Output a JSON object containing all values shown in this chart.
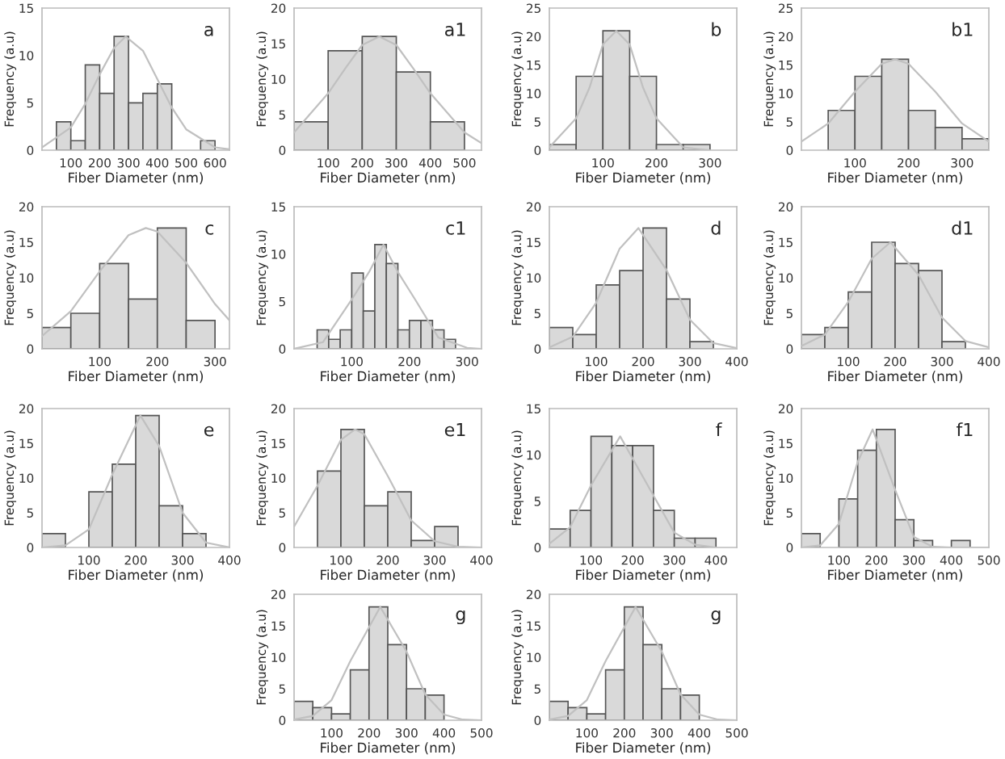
{
  "chart_data": [
    {
      "type": "histogram",
      "xlabel": "Fiber Diameter (nm)",
      "ylabel": "Frequency (a.u)",
      "annotations": [
        "a"
      ],
      "color": "#d9d9d9",
      "bins": [
        50,
        100,
        150,
        200,
        250,
        300,
        350,
        400,
        450,
        500,
        550,
        600
      ],
      "values": [
        3,
        1,
        9,
        6,
        12,
        5,
        6,
        7,
        0,
        0,
        1
      ],
      "xlim": [
        0,
        650
      ],
      "xticks": [
        100,
        200,
        300,
        400,
        500,
        600
      ],
      "ylim": [
        0,
        15
      ],
      "yticks": [
        0,
        5,
        10,
        15
      ],
      "grid": false,
      "series": [
        {
          "type": "line",
          "color": "#c0c0c0",
          "x": [
            0,
            100,
            150,
            200,
            250,
            290,
            350,
            400,
            450,
            500,
            600,
            650
          ],
          "values": [
            0.3,
            2.4,
            4.9,
            8,
            10.8,
            12,
            10.5,
            7.5,
            4.5,
            2.2,
            0.3,
            0.1
          ]
        }
      ]
    },
    {
      "type": "histogram",
      "xlabel": "Fiber Diameter (nm)",
      "ylabel": "Frequency (a.u)",
      "annotations": [
        "a1"
      ],
      "color": "#d9d9d9",
      "bins": [
        0,
        100,
        200,
        300,
        400,
        500
      ],
      "values": [
        4,
        14,
        16,
        11,
        4
      ],
      "xlim": [
        0,
        550
      ],
      "xticks": [
        100,
        200,
        300,
        400,
        500
      ],
      "ylim": [
        0,
        20
      ],
      "yticks": [
        0,
        5,
        10,
        15,
        20
      ],
      "grid": false,
      "series": [
        {
          "type": "line",
          "color": "#c0c0c0",
          "x": [
            0,
            100,
            150,
            200,
            250,
            300,
            350,
            400,
            500,
            550
          ],
          "values": [
            2.5,
            8,
            11.5,
            14.8,
            16,
            14.8,
            11.5,
            8,
            2.5,
            1
          ]
        }
      ]
    },
    {
      "type": "histogram",
      "xlabel": "Fiber Diameter (nm)",
      "ylabel": "Frequency (a.u)",
      "annotations": [
        "b"
      ],
      "color": "#d9d9d9",
      "bins": [
        0,
        50,
        100,
        150,
        200,
        250,
        300
      ],
      "values": [
        1,
        13,
        21,
        13,
        1,
        1
      ],
      "xlim": [
        0,
        350
      ],
      "xticks": [
        100,
        200,
        300
      ],
      "ylim": [
        0,
        25
      ],
      "yticks": [
        0,
        5,
        10,
        15,
        20,
        25
      ],
      "grid": false,
      "series": [
        {
          "type": "line",
          "color": "#c0c0c0",
          "x": [
            0,
            50,
            75,
            100,
            125,
            150,
            175,
            200,
            250,
            300
          ],
          "values": [
            0.5,
            5.6,
            11,
            18.6,
            21,
            18.6,
            11,
            5.6,
            0.5,
            0
          ]
        }
      ]
    },
    {
      "type": "histogram",
      "xlabel": "Fiber Diameter (nm)",
      "ylabel": "Frequency (a.u)",
      "annotations": [
        "b1"
      ],
      "color": "#d9d9d9",
      "bins": [
        50,
        100,
        150,
        200,
        250,
        300,
        350
      ],
      "values": [
        7,
        13,
        16,
        7,
        4,
        2
      ],
      "xlim": [
        0,
        350
      ],
      "xticks": [
        100,
        200,
        300
      ],
      "ylim": [
        0,
        25
      ],
      "yticks": [
        0,
        5,
        10,
        15,
        20,
        25
      ],
      "grid": false,
      "series": [
        {
          "type": "line",
          "color": "#c0c0c0",
          "x": [
            0,
            50,
            100,
            150,
            175,
            200,
            250,
            300,
            350
          ],
          "values": [
            1.5,
            4.7,
            10.3,
            15.2,
            16,
            15.2,
            10.3,
            4.7,
            1.5
          ]
        }
      ]
    },
    {
      "type": "histogram",
      "xlabel": "Fiber Diameter (nm)",
      "ylabel": "Frequency (a.u)",
      "annotations": [
        "c"
      ],
      "color": "#d9d9d9",
      "bins": [
        0,
        50,
        100,
        150,
        200,
        250,
        300
      ],
      "values": [
        3,
        5,
        12,
        7,
        17,
        4
      ],
      "xlim": [
        0,
        325
      ],
      "xticks": [
        100,
        200,
        300
      ],
      "ylim": [
        0,
        20
      ],
      "yticks": [
        0,
        5,
        10,
        15,
        20
      ],
      "grid": false,
      "series": [
        {
          "type": "line",
          "color": "#c0c0c0",
          "x": [
            0,
            50,
            100,
            150,
            180,
            200,
            250,
            300,
            325
          ],
          "values": [
            1.8,
            5.3,
            10.9,
            16,
            17,
            16.5,
            12.1,
            6.3,
            4
          ]
        }
      ]
    },
    {
      "type": "histogram",
      "xlabel": "Fiber Diameter (nm)",
      "ylabel": "Frequency (a.u)",
      "annotations": [
        "c1"
      ],
      "color": "#d9d9d9",
      "bins": [
        40,
        60,
        80,
        100,
        120,
        140,
        160,
        180,
        200,
        220,
        240,
        260,
        280
      ],
      "values": [
        2,
        1,
        2,
        8,
        4,
        11,
        9,
        2,
        3,
        3,
        2,
        1
      ],
      "xlim": [
        0,
        325
      ],
      "xticks": [
        100,
        200,
        300
      ],
      "ylim": [
        0,
        15
      ],
      "yticks": [
        0,
        5,
        10,
        15
      ],
      "grid": false,
      "series": [
        {
          "type": "line",
          "color": "#c0c0c0",
          "x": [
            0,
            50,
            100,
            130,
            155,
            180,
            210,
            250,
            300,
            325
          ],
          "values": [
            0,
            0.7,
            5.2,
            8.1,
            11,
            8.1,
            5.2,
            1.2,
            0.1,
            0
          ]
        }
      ]
    },
    {
      "type": "histogram",
      "xlabel": "Fiber Diameter (nm)",
      "ylabel": "Frequency (a.u)",
      "annotations": [
        "d"
      ],
      "color": "#d9d9d9",
      "bins": [
        0,
        50,
        100,
        150,
        200,
        250,
        300,
        350
      ],
      "values": [
        3,
        2,
        9,
        11,
        17,
        7,
        1
      ],
      "xlim": [
        0,
        400
      ],
      "xticks": [
        100,
        200,
        300,
        400
      ],
      "ylim": [
        0,
        20
      ],
      "yticks": [
        0,
        5,
        10,
        15,
        20
      ],
      "grid": false,
      "series": [
        {
          "type": "line",
          "color": "#c0c0c0",
          "x": [
            0,
            50,
            100,
            150,
            190,
            250,
            300,
            350,
            400
          ],
          "values": [
            0.2,
            1.7,
            6.5,
            14.1,
            17,
            11.1,
            4.1,
            0.8,
            0.1
          ]
        }
      ]
    },
    {
      "type": "histogram",
      "xlabel": "Fiber Diameter (nm)",
      "ylabel": "Frequency (a.u)",
      "annotations": [
        "d1"
      ],
      "color": "#d9d9d9",
      "bins": [
        0,
        50,
        100,
        150,
        200,
        250,
        300,
        350
      ],
      "values": [
        2,
        3,
        8,
        15,
        12,
        11,
        1
      ],
      "xlim": [
        0,
        400
      ],
      "xticks": [
        100,
        200,
        300,
        400
      ],
      "ylim": [
        0,
        20
      ],
      "yticks": [
        0,
        5,
        10,
        15,
        20
      ],
      "grid": false,
      "series": [
        {
          "type": "line",
          "color": "#c0c0c0",
          "x": [
            0,
            50,
            100,
            150,
            190,
            250,
            300,
            350,
            400
          ],
          "values": [
            0.4,
            2,
            6.6,
            12.7,
            15,
            10.4,
            4.4,
            1.1,
            0.2
          ]
        }
      ]
    },
    {
      "type": "histogram",
      "xlabel": "Fiber Diameter (nm)",
      "ylabel": "Frequency (a.u)",
      "annotations": [
        "e"
      ],
      "color": "#d9d9d9",
      "bins": [
        0,
        50,
        100,
        150,
        200,
        250,
        300,
        350
      ],
      "values": [
        2,
        0,
        8,
        12,
        19,
        6,
        2
      ],
      "xlim": [
        0,
        400
      ],
      "xticks": [
        100,
        200,
        300,
        400
      ],
      "ylim": [
        0,
        20
      ],
      "yticks": [
        0,
        5,
        10,
        15,
        20
      ],
      "grid": false,
      "series": [
        {
          "type": "line",
          "color": "#c0c0c0",
          "x": [
            0,
            50,
            100,
            150,
            210,
            250,
            300,
            350,
            400
          ],
          "values": [
            0,
            0.3,
            2.6,
            10.5,
            19,
            14.6,
            5,
            0.7,
            0
          ]
        }
      ]
    },
    {
      "type": "histogram",
      "xlabel": "Fiber Diameter (nm)",
      "ylabel": "Frequency (a.u)",
      "annotations": [
        "e1"
      ],
      "color": "#d9d9d9",
      "bins": [
        50,
        100,
        150,
        200,
        250,
        300,
        350
      ],
      "values": [
        11,
        17,
        6,
        8,
        1,
        3
      ],
      "xlim": [
        0,
        400
      ],
      "xticks": [
        100,
        200,
        300,
        400
      ],
      "ylim": [
        0,
        20
      ],
      "yticks": [
        0,
        5,
        10,
        15,
        20
      ],
      "grid": false,
      "series": [
        {
          "type": "line",
          "color": "#c0c0c0",
          "x": [
            0,
            50,
            100,
            130,
            150,
            200,
            250,
            300,
            350,
            400
          ],
          "values": [
            3,
            8.9,
            15.5,
            17,
            16.3,
            10.3,
            3.9,
            0.9,
            0.1,
            0
          ]
        }
      ]
    },
    {
      "type": "histogram",
      "xlabel": "Fiber Diameter (nm)",
      "ylabel": "Frequency (a.u)",
      "annotations": [
        "f"
      ],
      "color": "#d9d9d9",
      "bins": [
        0,
        50,
        100,
        150,
        200,
        250,
        300,
        350,
        400
      ],
      "values": [
        2,
        4,
        12,
        11,
        11,
        4,
        1,
        1
      ],
      "xlim": [
        0,
        450
      ],
      "xticks": [
        100,
        200,
        300,
        400
      ],
      "ylim": [
        0,
        15
      ],
      "yticks": [
        0,
        5,
        10,
        15
      ],
      "grid": false,
      "series": [
        {
          "type": "line",
          "color": "#c0c0c0",
          "x": [
            0,
            50,
            100,
            170,
            250,
            300,
            350,
            400
          ],
          "values": [
            0.4,
            2.2,
            6.7,
            12,
            5.6,
            1.6,
            0.3,
            0
          ]
        }
      ]
    },
    {
      "type": "histogram",
      "xlabel": "Fiber Diameter (nm)",
      "ylabel": "Frequency (a.u)",
      "annotations": [
        "f1"
      ],
      "color": "#d9d9d9",
      "bins": [
        0,
        50,
        100,
        150,
        200,
        250,
        300,
        350,
        400,
        450
      ],
      "values": [
        2,
        0,
        7,
        14,
        17,
        4,
        1,
        0,
        1
      ],
      "xlim": [
        0,
        500
      ],
      "xticks": [
        100,
        200,
        300,
        400,
        500
      ],
      "ylim": [
        0,
        20
      ],
      "yticks": [
        0,
        5,
        10,
        15,
        20
      ],
      "grid": false,
      "series": [
        {
          "type": "line",
          "color": "#c0c0c0",
          "x": [
            0,
            50,
            100,
            150,
            190,
            250,
            300,
            350,
            400,
            500
          ],
          "values": [
            0,
            0.3,
            3.4,
            12.3,
            17,
            8.3,
            1.5,
            0.1,
            0,
            0
          ]
        }
      ]
    },
    {
      "type": "histogram",
      "xlabel": "Fiber Diameter (nm)",
      "ylabel": "Frequency (a.u)",
      "annotations": [
        "g"
      ],
      "color": "#d9d9d9",
      "bins": [
        0,
        50,
        100,
        150,
        200,
        250,
        300,
        350,
        400
      ],
      "values": [
        3,
        2,
        1,
        8,
        18,
        12,
        5,
        4
      ],
      "xlim": [
        0,
        500
      ],
      "xticks": [
        100,
        200,
        300,
        400,
        500
      ],
      "ylim": [
        0,
        20
      ],
      "yticks": [
        0,
        5,
        10,
        15,
        20
      ],
      "grid": false,
      "series": [
        {
          "type": "line",
          "color": "#c0c0c0",
          "x": [
            0,
            50,
            100,
            150,
            230,
            300,
            350,
            400,
            450,
            500
          ],
          "values": [
            0.1,
            0.7,
            3.2,
            9.4,
            18,
            10.9,
            4.1,
            0.9,
            0.1,
            0
          ]
        }
      ]
    },
    {
      "type": "histogram",
      "xlabel": "Fiber Diameter (nm)",
      "ylabel": "Frequency (a.u)",
      "annotations": [
        "g"
      ],
      "color": "#d9d9d9",
      "bins": [
        0,
        50,
        100,
        150,
        200,
        250,
        300,
        350,
        400
      ],
      "values": [
        3,
        2,
        1,
        8,
        18,
        12,
        5,
        4
      ],
      "xlim": [
        0,
        500
      ],
      "xticks": [
        100,
        200,
        300,
        400,
        500
      ],
      "ylim": [
        0,
        20
      ],
      "yticks": [
        0,
        5,
        10,
        15,
        20
      ],
      "grid": false,
      "series": [
        {
          "type": "line",
          "color": "#c0c0c0",
          "x": [
            0,
            50,
            100,
            150,
            230,
            300,
            350,
            400,
            450,
            500
          ],
          "values": [
            0.1,
            0.7,
            3.2,
            9.4,
            18,
            10.9,
            4.1,
            0.9,
            0.1,
            0
          ]
        }
      ]
    }
  ]
}
